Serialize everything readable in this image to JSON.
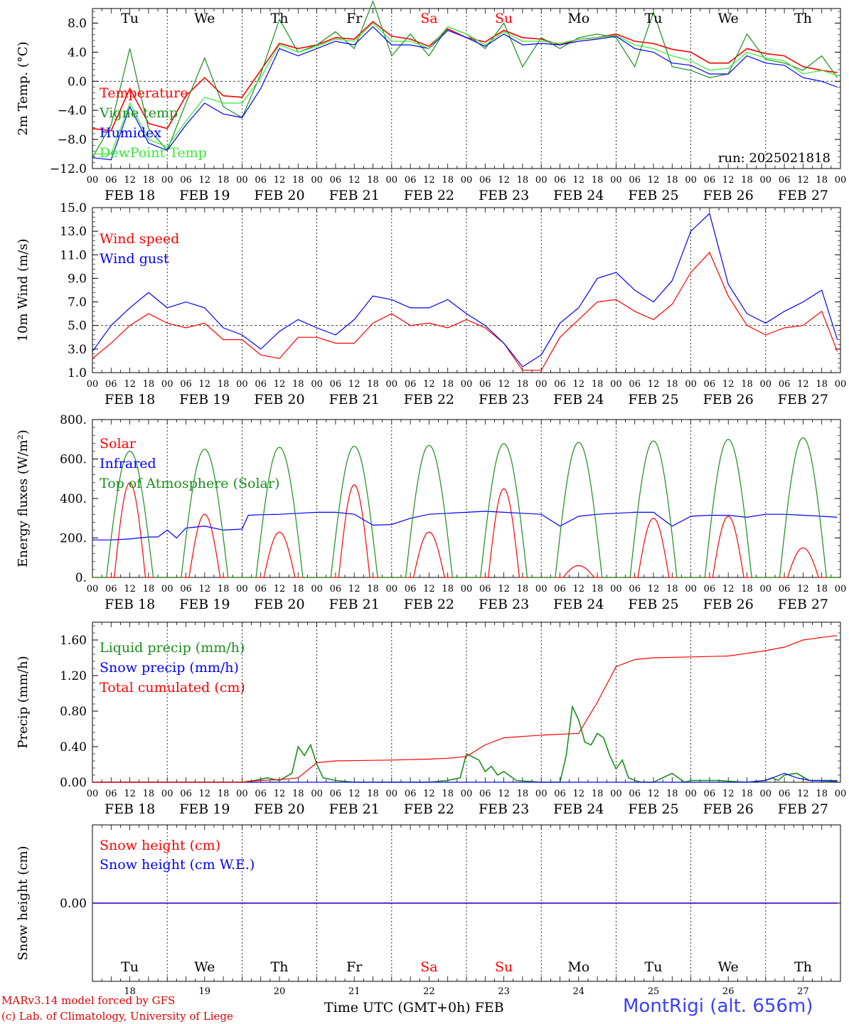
{
  "dow_top": [
    "Tu",
    "We",
    "Th",
    "Fr",
    "Sa",
    "Su",
    "Mo",
    "Tu",
    "We",
    "Th"
  ],
  "dow_colors": [
    "#000000",
    "#000000",
    "#000000",
    "#000000",
    "#ff0000",
    "#ff0000",
    "#000000",
    "#000000",
    "#000000",
    "#000000"
  ],
  "day_numbers": [
    "18",
    "19",
    "20",
    "21",
    "22",
    "23",
    "24",
    "25",
    "26",
    "27"
  ],
  "date_labels": [
    "FEB 18",
    "FEB 19",
    "FEB 20",
    "FEB 21",
    "FEB 22",
    "FEB 23",
    "FEB 24",
    "FEB 25",
    "FEB 26",
    "FEB 27"
  ],
  "hour_labels": [
    "00",
    "06",
    "12",
    "18"
  ],
  "run_label": "run: 2025021818",
  "footer": {
    "model": "MARv3.14 model forced by GFS",
    "lab": "(c) Lab. of Climatology, University of Liege",
    "time_axis": "Time UTC (GMT+0h) FEB",
    "station": "MontRigi (alt. 656m)"
  },
  "chart_data": [
    {
      "type": "line",
      "ylabel": "2m Temp. (°C)",
      "ylim": [
        -12,
        10
      ],
      "yticks": [
        "8.0",
        "4.0",
        "0.0",
        "−4.0",
        "−8.0",
        "−12.0"
      ],
      "ytick_values": [
        8,
        4,
        0,
        -4,
        -8,
        -12
      ],
      "ref_line": 0,
      "x_unit": "hours since FEB 18 00 UTC",
      "series": [
        {
          "name": "Temperature",
          "color": "#ff0000",
          "x": [
            0,
            6,
            12,
            18,
            24,
            30,
            36,
            42,
            48,
            54,
            60,
            66,
            72,
            78,
            84,
            90,
            96,
            102,
            108,
            114,
            120,
            126,
            132,
            138,
            144,
            150,
            156,
            162,
            168,
            174,
            180,
            186,
            192,
            198,
            204,
            210,
            216,
            222,
            228,
            234,
            239
          ],
          "y": [
            -6.5,
            -6.8,
            -1.0,
            -5.8,
            -6.5,
            -2.0,
            0.5,
            -2.0,
            -2.2,
            1.5,
            5.2,
            4.5,
            5.0,
            6.0,
            5.8,
            8.2,
            6.2,
            5.8,
            4.8,
            7.2,
            6.0,
            5.4,
            7.0,
            6.0,
            5.8,
            5.0,
            5.8,
            6.0,
            6.5,
            5.5,
            5.2,
            4.4,
            4.0,
            2.5,
            2.5,
            4.5,
            3.8,
            3.5,
            2.0,
            1.5,
            1.2
          ]
        },
        {
          "name": "Vigne temp",
          "color": "#1a8f1a",
          "x": [
            0,
            6,
            12,
            18,
            24,
            30,
            36,
            42,
            48,
            54,
            60,
            66,
            72,
            78,
            84,
            90,
            96,
            102,
            108,
            114,
            120,
            126,
            132,
            138,
            144,
            150,
            156,
            162,
            168,
            174,
            180,
            186,
            192,
            198,
            204,
            210,
            216,
            222,
            228,
            234,
            239
          ],
          "y": [
            -10.5,
            -6.0,
            4.5,
            -6.5,
            -9.5,
            -3.0,
            3.2,
            -3.5,
            -5.0,
            1.0,
            8.5,
            4.0,
            5.0,
            6.8,
            4.5,
            11.0,
            3.5,
            6.5,
            3.5,
            7.5,
            6.5,
            4.5,
            8.0,
            2.0,
            6.0,
            4.5,
            6.0,
            6.5,
            6.0,
            2.0,
            9.5,
            2.0,
            1.5,
            0.5,
            1.0,
            6.5,
            3.0,
            2.5,
            1.5,
            3.5,
            0.5
          ]
        },
        {
          "name": "Humidex",
          "color": "#0000ff",
          "x": [
            0,
            6,
            12,
            18,
            24,
            30,
            36,
            42,
            48,
            54,
            60,
            66,
            72,
            78,
            84,
            90,
            96,
            102,
            108,
            114,
            120,
            126,
            132,
            138,
            144,
            150,
            156,
            162,
            168,
            174,
            180,
            186,
            192,
            198,
            204,
            210,
            216,
            222,
            228,
            234,
            239
          ],
          "y": [
            -10.5,
            -10.8,
            -3.5,
            -8.5,
            -9.5,
            -6.0,
            -3.0,
            -4.5,
            -5.0,
            -1.0,
            4.5,
            3.5,
            4.5,
            5.5,
            5.0,
            7.5,
            5.0,
            5.0,
            4.5,
            7.0,
            6.0,
            4.8,
            6.5,
            5.0,
            5.2,
            5.0,
            5.5,
            5.8,
            6.2,
            4.5,
            4.0,
            2.5,
            2.2,
            1.0,
            1.0,
            3.5,
            2.5,
            2.2,
            0.5,
            0.0,
            -0.8
          ]
        },
        {
          "name": "DewPoint Temp",
          "color": "#33ee33",
          "x": [
            0,
            6,
            12,
            18,
            24,
            30,
            36,
            42,
            48,
            54,
            60,
            66,
            72,
            78,
            84,
            90,
            96,
            102,
            108,
            114,
            120,
            126,
            132,
            138,
            144,
            150,
            156,
            162,
            168,
            174,
            180,
            186,
            192,
            198,
            204,
            210,
            216,
            222,
            228,
            234,
            239
          ],
          "y": [
            -10.0,
            -10.0,
            -3.0,
            -8.0,
            -9.0,
            -5.5,
            -2.2,
            -3.0,
            -3.0,
            0.5,
            5.0,
            4.0,
            4.8,
            5.8,
            5.5,
            8.0,
            5.5,
            5.5,
            4.5,
            7.5,
            6.5,
            5.0,
            6.8,
            5.5,
            5.5,
            5.2,
            5.8,
            6.0,
            6.3,
            5.0,
            4.5,
            3.5,
            2.8,
            1.5,
            1.8,
            4.0,
            3.2,
            2.8,
            1.0,
            1.5,
            0.8
          ]
        }
      ]
    },
    {
      "type": "line",
      "ylabel": "10m Wind (m/s)",
      "ylim": [
        1,
        15
      ],
      "yticks": [
        "15.0",
        "13.0",
        "11.0",
        "9.0",
        "7.0",
        "5.0",
        "3.0",
        "1.0"
      ],
      "ytick_values": [
        15,
        13,
        11,
        9,
        7,
        5,
        3,
        1
      ],
      "ref_line": 5,
      "x_unit": "hours since FEB 18 00 UTC",
      "series": [
        {
          "name": "Wind speed",
          "color": "#ff0000",
          "x": [
            0,
            6,
            12,
            18,
            24,
            30,
            36,
            42,
            48,
            54,
            60,
            66,
            72,
            78,
            84,
            90,
            96,
            102,
            108,
            114,
            120,
            126,
            132,
            138,
            144,
            150,
            156,
            162,
            168,
            174,
            180,
            186,
            192,
            198,
            204,
            210,
            216,
            222,
            228,
            234,
            239
          ],
          "y": [
            2.2,
            3.5,
            5.0,
            6.0,
            5.2,
            4.8,
            5.2,
            3.8,
            3.8,
            2.5,
            2.2,
            4.0,
            4.0,
            3.5,
            3.5,
            5.2,
            6.0,
            5.0,
            5.2,
            4.8,
            5.5,
            4.8,
            3.5,
            1.2,
            1.2,
            4.0,
            5.5,
            7.0,
            7.2,
            6.2,
            5.5,
            6.8,
            9.5,
            11.2,
            7.5,
            5.0,
            4.2,
            4.8,
            5.0,
            6.2,
            2.8
          ]
        },
        {
          "name": "Wind gust",
          "color": "#0000ff",
          "x": [
            0,
            6,
            12,
            18,
            24,
            30,
            36,
            42,
            48,
            54,
            60,
            66,
            72,
            78,
            84,
            90,
            96,
            102,
            108,
            114,
            120,
            126,
            132,
            138,
            144,
            150,
            156,
            162,
            168,
            174,
            180,
            186,
            192,
            198,
            204,
            210,
            216,
            222,
            228,
            234,
            239
          ],
          "y": [
            2.8,
            5.0,
            6.5,
            7.8,
            6.5,
            7.0,
            6.5,
            4.8,
            4.2,
            3.0,
            4.5,
            5.5,
            4.8,
            4.2,
            5.5,
            7.5,
            7.2,
            6.5,
            6.5,
            7.2,
            6.0,
            5.0,
            3.5,
            1.5,
            2.5,
            5.2,
            6.5,
            9.0,
            9.5,
            8.0,
            7.0,
            8.8,
            13.0,
            14.5,
            8.5,
            6.0,
            5.2,
            6.2,
            7.0,
            8.0,
            3.8
          ]
        }
      ]
    },
    {
      "type": "line",
      "ylabel": "Energy fluxes (W/m²)",
      "ylim": [
        0,
        800
      ],
      "yticks": [
        "800.",
        "600.",
        "400.",
        "200.",
        "0."
      ],
      "ytick_values": [
        800,
        600,
        400,
        200,
        0
      ],
      "x_unit": "hours since FEB 18 00 UTC",
      "daily_peaks_top_of_atmosphere": [
        640,
        650,
        660,
        665,
        670,
        678,
        685,
        692,
        700,
        708
      ],
      "daily_peaks_solar": [
        480,
        320,
        230,
        470,
        230,
        450,
        60,
        300,
        310,
        150
      ],
      "series": [
        {
          "name": "Solar",
          "color": "#ff0000",
          "x": [],
          "y": []
        },
        {
          "name": "Infrared",
          "color": "#0000ff",
          "x": [
            0,
            6,
            12,
            18,
            21,
            24,
            27,
            30,
            36,
            42,
            48,
            50,
            54,
            60,
            66,
            72,
            78,
            84,
            90,
            96,
            102,
            108,
            114,
            120,
            126,
            132,
            138,
            144,
            150,
            156,
            162,
            168,
            174,
            180,
            186,
            192,
            198,
            204,
            210,
            216,
            222,
            228,
            234,
            239
          ],
          "y": [
            190,
            190,
            195,
            205,
            205,
            240,
            200,
            250,
            260,
            240,
            245,
            315,
            318,
            320,
            325,
            330,
            330,
            320,
            265,
            268,
            300,
            320,
            325,
            330,
            335,
            330,
            325,
            320,
            260,
            310,
            320,
            325,
            330,
            330,
            260,
            310,
            315,
            315,
            305,
            320,
            320,
            315,
            310,
            305
          ]
        },
        {
          "name": "Top of Atmosphere (Solar)",
          "color": "#1a8f1a",
          "x": [],
          "y": []
        }
      ]
    },
    {
      "type": "line",
      "ylabel": "Precip (mm/h)",
      "ylim": [
        0,
        1.8
      ],
      "yticks": [
        "1.60",
        "1.20",
        "0.80",
        "0.40",
        "0.00"
      ],
      "ytick_values": [
        1.6,
        1.2,
        0.8,
        0.4,
        0.0
      ],
      "x_unit": "hours since FEB 18 00 UTC",
      "series": [
        {
          "name": "Liquid precip (mm/h)",
          "color": "#1a8f1a",
          "x": [
            0,
            48,
            52,
            56,
            60,
            64,
            66,
            68,
            70,
            72,
            74,
            78,
            84,
            96,
            108,
            114,
            118,
            120,
            124,
            126,
            128,
            130,
            132,
            136,
            144,
            150,
            152,
            154,
            156,
            158,
            160,
            162,
            164,
            166,
            168,
            170,
            172,
            174,
            176,
            180,
            186,
            190,
            192,
            200,
            210,
            216,
            218,
            220,
            222,
            226,
            230,
            239
          ],
          "y": [
            0,
            0,
            0.02,
            0.05,
            0.02,
            0.1,
            0.4,
            0.3,
            0.42,
            0.2,
            0.05,
            0.02,
            0.0,
            0.0,
            0.0,
            0.02,
            0.05,
            0.32,
            0.25,
            0.12,
            0.18,
            0.08,
            0.12,
            0.02,
            0.0,
            0.0,
            0.3,
            0.85,
            0.7,
            0.45,
            0.42,
            0.55,
            0.5,
            0.3,
            0.15,
            0.25,
            0.05,
            0.02,
            0.0,
            0.0,
            0.1,
            0.0,
            0.02,
            0.02,
            0.0,
            0.02,
            0.05,
            0.02,
            0.08,
            0.1,
            0.02,
            0.02
          ]
        },
        {
          "name": "Snow precip (mm/h)",
          "color": "#0000ff",
          "x": [
            0,
            210,
            216,
            222,
            226,
            230,
            239
          ],
          "y": [
            0,
            0,
            0.02,
            0.1,
            0.05,
            0.02,
            0.01
          ]
        },
        {
          "name": "Total cumulated (cm)",
          "color": "#ff0000",
          "x": [
            0,
            48,
            54,
            60,
            66,
            72,
            78,
            96,
            108,
            114,
            120,
            126,
            132,
            144,
            150,
            156,
            162,
            168,
            174,
            180,
            192,
            204,
            210,
            216,
            222,
            228,
            234,
            239
          ],
          "y": [
            0,
            0,
            0.02,
            0.03,
            0.05,
            0.22,
            0.24,
            0.25,
            0.26,
            0.27,
            0.29,
            0.42,
            0.5,
            0.53,
            0.54,
            0.55,
            0.9,
            1.3,
            1.38,
            1.4,
            1.41,
            1.42,
            1.45,
            1.48,
            1.52,
            1.6,
            1.63,
            1.65
          ]
        }
      ]
    },
    {
      "type": "line",
      "ylabel": "Snow height (cm)",
      "yticks": [
        "0.00"
      ],
      "ytick_values": [
        0
      ],
      "x_unit": "hours since FEB 18 00 UTC",
      "series": [
        {
          "name": "Snow height (cm)",
          "color": "#ff0000",
          "x": [
            0,
            239
          ],
          "y": [
            0,
            0
          ]
        },
        {
          "name": "Snow height (cm W.E.)",
          "color": "#0000ff",
          "x": [
            0,
            239
          ],
          "y": [
            0,
            0
          ]
        }
      ]
    }
  ]
}
